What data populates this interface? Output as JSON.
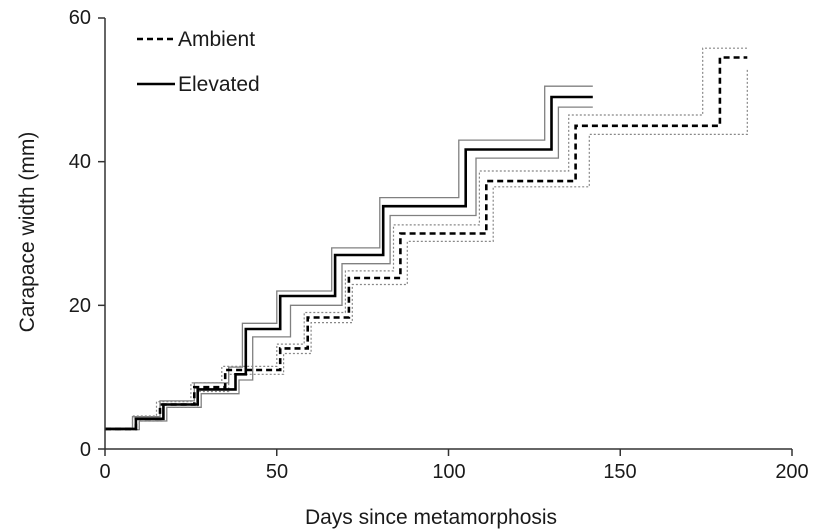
{
  "chart_data": {
    "type": "line",
    "title": "",
    "xlabel": "Days since metamorphosis",
    "ylabel": "Carapace width (mm)",
    "xlim": [
      0,
      200
    ],
    "ylim": [
      0,
      60
    ],
    "xticks": [
      "0",
      "50",
      "100",
      "150",
      "200"
    ],
    "yticks": [
      "0",
      "20",
      "40",
      "60"
    ],
    "grid": false,
    "legend_position": "top-left",
    "legend": [
      "Ambient",
      "Elevated"
    ],
    "series": [
      {
        "name": "Ambient",
        "style": "dashed",
        "color": "#000000",
        "role": "mean",
        "x": [
          0,
          6,
          9,
          16,
          26,
          35,
          51,
          59,
          69,
          71,
          86,
          111,
          137,
          179,
          187
        ],
        "y": [
          2.8,
          2.8,
          4.2,
          6.2,
          8.6,
          11.0,
          14.0,
          18.3,
          18.3,
          23.8,
          30.0,
          37.3,
          45.0,
          54.5,
          54.5
        ]
      },
      {
        "name": "",
        "style": "dotted",
        "color": "#888888",
        "role": "upper-band",
        "x": [
          0,
          5,
          8,
          15,
          25,
          34,
          50,
          58,
          68,
          70,
          84,
          109,
          135,
          174,
          187
        ],
        "y": [
          2.9,
          2.9,
          4.6,
          6.6,
          9.2,
          11.5,
          14.6,
          19.0,
          19.0,
          24.8,
          31.2,
          38.7,
          46.5,
          55.8,
          55.8
        ]
      },
      {
        "name": "",
        "style": "dotted",
        "color": "#888888",
        "role": "lower-band",
        "x": [
          0,
          7,
          10,
          17,
          27,
          36,
          52,
          60,
          70,
          72,
          88,
          113,
          141,
          185,
          187
        ],
        "y": [
          2.7,
          2.7,
          3.9,
          5.8,
          8.0,
          10.4,
          13.3,
          17.6,
          17.6,
          22.9,
          28.9,
          36.5,
          43.8,
          43.8,
          53.0
        ]
      },
      {
        "name": "Elevated",
        "style": "solid",
        "color": "#000000",
        "role": "mean",
        "x": [
          0,
          5,
          9,
          17,
          27,
          38,
          41,
          51,
          67,
          81,
          105,
          130,
          142
        ],
        "y": [
          2.8,
          2.8,
          4.2,
          6.2,
          8.3,
          10.4,
          16.7,
          21.3,
          27.0,
          33.8,
          41.7,
          49.0,
          49.0
        ]
      },
      {
        "name": "",
        "style": "solid-thin",
        "color": "#808080",
        "role": "upper-band",
        "x": [
          0,
          4,
          8,
          16,
          26,
          36,
          40,
          50,
          66,
          80,
          103,
          128,
          142
        ],
        "y": [
          2.9,
          2.9,
          4.5,
          6.7,
          9.2,
          11.4,
          17.5,
          22.0,
          28.0,
          35.0,
          43.0,
          50.5,
          50.5
        ]
      },
      {
        "name": "",
        "style": "solid-thin",
        "color": "#808080",
        "role": "lower-band",
        "x": [
          0,
          6,
          10,
          18,
          28,
          39,
          43,
          54,
          69,
          83,
          108,
          132,
          142
        ],
        "y": [
          2.7,
          2.7,
          3.9,
          5.8,
          7.7,
          9.6,
          15.6,
          20.0,
          25.8,
          32.5,
          40.5,
          47.6,
          47.6
        ]
      }
    ]
  }
}
